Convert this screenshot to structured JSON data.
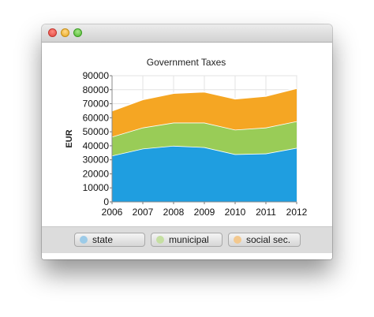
{
  "window": {
    "title": ""
  },
  "colors": {
    "state": "#1f9ee0",
    "municipal": "#99cc57",
    "social": "#f5a623"
  },
  "chart_data": {
    "type": "area",
    "stacked": true,
    "title": "Government Taxes",
    "xlabel": "",
    "ylabel": "EUR",
    "x": [
      "2006",
      "2007",
      "2008",
      "2009",
      "2010",
      "2011",
      "2012"
    ],
    "ylim": [
      0,
      90000
    ],
    "yticks": [
      "0",
      "10000",
      "20000",
      "30000",
      "40000",
      "50000",
      "60000",
      "70000",
      "80000",
      "90000"
    ],
    "grid": true,
    "legend": "bottom",
    "series": [
      {
        "name": "state",
        "values": [
          33000,
          38000,
          40000,
          39000,
          34000,
          34500,
          38500
        ]
      },
      {
        "name": "municipal",
        "values": [
          13500,
          15000,
          16500,
          17500,
          17500,
          18500,
          19000
        ]
      },
      {
        "name": "social sec.",
        "values": [
          18500,
          20000,
          21000,
          22000,
          22000,
          22500,
          23500
        ]
      }
    ]
  },
  "legend": {
    "items": [
      {
        "label": "state",
        "color": "#9ccbe8"
      },
      {
        "label": "municipal",
        "color": "#c5dfa2"
      },
      {
        "label": "social sec.",
        "color": "#f3c88e"
      }
    ]
  }
}
